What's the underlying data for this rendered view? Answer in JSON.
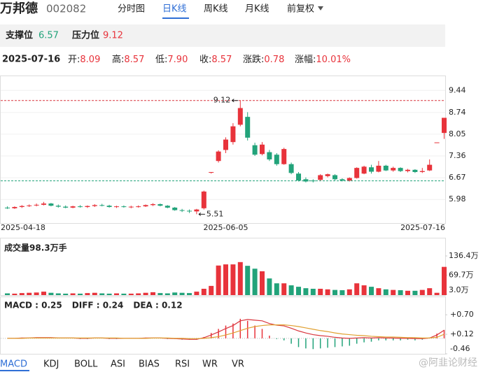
{
  "header": {
    "name": "万邦德",
    "code": "002082",
    "tabs": [
      "分时图",
      "日K线",
      "周K线",
      "月K线",
      "前复权"
    ]
  },
  "levels": {
    "support_label": "支撑位",
    "support": 6.57,
    "pressure_label": "压力位",
    "pressure": 9.12
  },
  "quote": {
    "date": "2025-07-16",
    "items": [
      {
        "label": "开:",
        "value": "8.09"
      },
      {
        "label": "高:",
        "value": "8.57"
      },
      {
        "label": "低:",
        "value": "7.90"
      },
      {
        "label": "收:",
        "value": "8.57"
      },
      {
        "label": "涨跌:",
        "value": "0.78"
      },
      {
        "label": "涨幅:",
        "value": "10.01%"
      }
    ]
  },
  "chart_data": [
    {
      "type": "candlestick",
      "categories": [
        "2025-04-18",
        null,
        null,
        null,
        null,
        null,
        null,
        null,
        null,
        null,
        null,
        null,
        null,
        null,
        null,
        null,
        null,
        null,
        null,
        null,
        null,
        null,
        null,
        null,
        null,
        null,
        null,
        null,
        null,
        null,
        "2025-06-05",
        null,
        null,
        null,
        null,
        null,
        null,
        null,
        null,
        null,
        null,
        null,
        null,
        null,
        null,
        null,
        null,
        null,
        null,
        null,
        null,
        null,
        null,
        null,
        null,
        null,
        null,
        null,
        null,
        null,
        "2025-07-16"
      ],
      "open": [
        5.72,
        5.7,
        5.74,
        5.77,
        5.79,
        5.81,
        5.85,
        5.78,
        5.75,
        5.72,
        5.76,
        5.74,
        5.77,
        5.8,
        5.78,
        5.74,
        5.76,
        5.74,
        5.75,
        5.76,
        5.8,
        5.83,
        5.78,
        5.72,
        5.64,
        5.62,
        5.6,
        5.7,
        6.85,
        7.2,
        7.55,
        7.8,
        8.35,
        8.6,
        7.7,
        7.42,
        7.48,
        7.4,
        7.1,
        7.1,
        6.8,
        6.62,
        6.58,
        6.6,
        6.72,
        6.75,
        6.62,
        6.58,
        6.66,
        6.8,
        7.0,
        6.86,
        7.05,
        6.9,
        6.98,
        6.88,
        6.92,
        6.85,
        6.9,
        7.79,
        8.09
      ],
      "high": [
        5.76,
        5.76,
        5.8,
        5.82,
        5.85,
        5.9,
        5.87,
        5.82,
        5.79,
        5.78,
        5.8,
        5.79,
        5.83,
        5.84,
        5.81,
        5.78,
        5.79,
        5.78,
        5.79,
        5.82,
        5.86,
        5.85,
        5.8,
        5.74,
        5.68,
        5.66,
        5.68,
        6.26,
        6.85,
        7.54,
        7.95,
        8.4,
        9.12,
        8.75,
        7.78,
        7.8,
        7.55,
        7.45,
        7.62,
        7.15,
        6.85,
        6.68,
        6.62,
        6.78,
        6.8,
        6.78,
        6.65,
        6.68,
        7.0,
        7.05,
        7.08,
        7.2,
        7.08,
        7.02,
        7.0,
        6.95,
        6.94,
        6.98,
        7.25,
        7.79,
        8.57
      ],
      "low": [
        5.68,
        5.68,
        5.71,
        5.74,
        5.76,
        5.79,
        5.76,
        5.72,
        5.7,
        5.7,
        5.72,
        5.71,
        5.74,
        5.76,
        5.72,
        5.71,
        5.72,
        5.7,
        5.72,
        5.74,
        5.77,
        5.76,
        5.7,
        5.62,
        5.58,
        5.55,
        5.51,
        5.66,
        6.8,
        7.15,
        7.45,
        7.72,
        8.3,
        7.85,
        7.36,
        7.38,
        7.2,
        7.05,
        7.08,
        6.78,
        6.55,
        6.52,
        6.52,
        6.58,
        6.68,
        6.58,
        6.55,
        6.55,
        6.64,
        6.78,
        6.8,
        6.84,
        6.88,
        6.86,
        6.85,
        6.84,
        6.82,
        6.82,
        6.88,
        7.79,
        7.9
      ],
      "close": [
        5.7,
        5.74,
        5.77,
        5.79,
        5.81,
        5.85,
        5.78,
        5.75,
        5.72,
        5.76,
        5.74,
        5.77,
        5.8,
        5.78,
        5.74,
        5.76,
        5.74,
        5.75,
        5.76,
        5.8,
        5.83,
        5.78,
        5.72,
        5.64,
        5.62,
        5.6,
        5.66,
        6.23,
        6.85,
        7.5,
        7.88,
        8.3,
        8.88,
        7.94,
        7.4,
        7.72,
        7.25,
        7.1,
        7.58,
        6.82,
        6.58,
        6.55,
        6.57,
        6.75,
        6.78,
        6.62,
        6.58,
        6.66,
        6.98,
        7.02,
        6.86,
        7.05,
        6.9,
        6.98,
        6.88,
        6.92,
        6.85,
        6.88,
        7.08,
        7.79,
        8.57
      ],
      "up_color": "#e8333b",
      "down_color": "#22a37a",
      "ylim": [
        5.23,
        9.89
      ],
      "yticks": [
        9.44,
        8.74,
        8.05,
        7.36,
        6.67,
        5.98
      ],
      "max_label": "9.12",
      "min_label": "5.51"
    },
    {
      "type": "bar",
      "title": "成交量98.3万手",
      "values": [
        6,
        5,
        7,
        8,
        9,
        12,
        8,
        6,
        5,
        6,
        5,
        7,
        8,
        6,
        5,
        6,
        5,
        5,
        6,
        8,
        10,
        7,
        6,
        9,
        8,
        7,
        12,
        22,
        32,
        103,
        107,
        107,
        115,
        102,
        92,
        83,
        58,
        41,
        41,
        34,
        29,
        24,
        22,
        22,
        20,
        18,
        17,
        20,
        41,
        34,
        29,
        24,
        20,
        18,
        17,
        15,
        15,
        18,
        24,
        8,
        98.3
      ],
      "ylim": [
        0,
        195
      ],
      "yticks": [
        {
          "value": 136.4,
          "label": "136.4万"
        },
        {
          "value": 69.7,
          "label": "69.7万"
        },
        {
          "value": 3.0,
          "label": "3.0万"
        }
      ]
    },
    {
      "type": "macd",
      "legend": [
        "MACD : 0.25",
        "DIFF : 0.24",
        "DEA : 0.12"
      ],
      "legend_colors": [
        "#222",
        "#222",
        "#7b3fbf"
      ],
      "up_color": "#e8333b",
      "down_color": "#22a37a",
      "series": [
        {
          "values": [
            0,
            0,
            0.02,
            0,
            0.02,
            0.02,
            0.02,
            0,
            0,
            0,
            -0.02,
            -0.02,
            0,
            0,
            -0.02,
            -0.02,
            0,
            0,
            0,
            0.02,
            0,
            0,
            -0.02,
            -0.02,
            -0.04,
            -0.04,
            -0.04,
            0.04,
            0.16,
            0.28,
            0.38,
            0.44,
            0.58,
            0.52,
            0.38,
            0.28,
            0.08,
            -0.02,
            -0.06,
            -0.16,
            -0.26,
            -0.3,
            -0.32,
            -0.3,
            -0.28,
            -0.26,
            -0.24,
            -0.22,
            -0.16,
            -0.12,
            -0.1,
            -0.06,
            -0.06,
            -0.06,
            -0.06,
            -0.04,
            -0.06,
            -0.04,
            0,
            0.14,
            0.25
          ]
        },
        {
          "color": "#d9363e",
          "values": [
            0,
            0,
            0.01,
            0.01,
            0.02,
            0.02,
            0.02,
            0.01,
            0.01,
            0.01,
            0,
            0,
            0.01,
            0.01,
            0,
            0,
            0,
            0,
            0,
            0.01,
            0.01,
            0.01,
            0,
            -0.01,
            -0.02,
            -0.03,
            -0.03,
            0.02,
            0.1,
            0.19,
            0.29,
            0.38,
            0.52,
            0.56,
            0.54,
            0.52,
            0.44,
            0.39,
            0.37,
            0.3,
            0.22,
            0.16,
            0.11,
            0.08,
            0.06,
            0.03,
            0.01,
            0,
            0.01,
            0.02,
            0.01,
            0.02,
            0.01,
            0.01,
            0,
            0,
            -0.01,
            -0.01,
            0.01,
            0.1,
            0.24
          ]
        },
        {
          "color": "#e0a030",
          "values": [
            0,
            0,
            0,
            0.01,
            0.01,
            0.01,
            0.01,
            0.01,
            0.01,
            0.01,
            0.01,
            0.01,
            0.01,
            0.01,
            0.01,
            0.01,
            0,
            0,
            0,
            0,
            0.01,
            0.01,
            0.01,
            0,
            0,
            -0.01,
            -0.01,
            0,
            0.02,
            0.05,
            0.1,
            0.16,
            0.23,
            0.3,
            0.35,
            0.38,
            0.4,
            0.4,
            0.4,
            0.38,
            0.35,
            0.31,
            0.27,
            0.23,
            0.2,
            0.16,
            0.13,
            0.11,
            0.09,
            0.08,
            0.06,
            0.05,
            0.04,
            0.04,
            0.03,
            0.02,
            0.02,
            0.01,
            0.01,
            0.03,
            0.12
          ]
        }
      ],
      "ylim": [
        -0.46,
        1.16
      ],
      "yticks": [
        {
          "value": 0.7,
          "label": "+0.70"
        },
        {
          "value": 0.12,
          "label": "+0.12"
        },
        -0.46
      ]
    }
  ],
  "indicator_tabs": [
    "MACD",
    "KDJ",
    "BOLL",
    "ASI",
    "BIAS",
    "RSI",
    "WR",
    "VR"
  ],
  "watermark": "@阿韭论财经"
}
